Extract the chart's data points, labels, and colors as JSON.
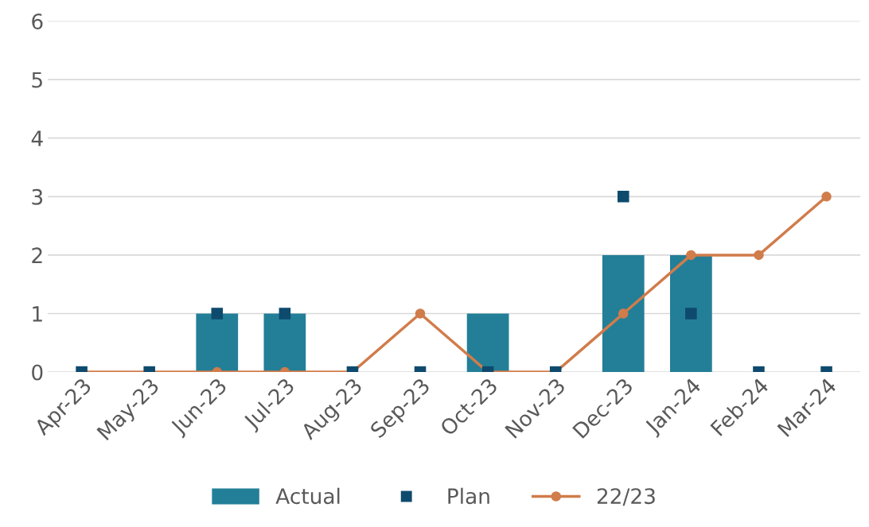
{
  "chart_data": {
    "type": "bar",
    "categories": [
      "Apr-23",
      "May-23",
      "Jun-23",
      "Jul-23",
      "Aug-23",
      "Sep-23",
      "Oct-23",
      "Nov-23",
      "Dec-23",
      "Jan-24",
      "Feb-24",
      "Mar-24"
    ],
    "series": [
      {
        "name": "Actual",
        "color": "#237f97",
        "values": [
          0,
          0,
          1,
          1,
          0,
          0,
          1,
          0,
          2,
          2,
          0,
          0
        ]
      },
      {
        "name": "Plan",
        "type": "scatter",
        "marker": "square",
        "color": "#0e4a6e",
        "values": [
          0,
          0,
          1,
          1,
          0,
          0,
          0,
          0,
          3,
          1,
          0,
          0
        ]
      },
      {
        "name": "22/23",
        "type": "line",
        "marker": "circle",
        "color": "#d17c4b",
        "values": [
          0,
          0,
          0,
          0,
          0,
          1,
          0,
          0,
          1,
          2,
          2,
          3
        ]
      }
    ],
    "ylim": [
      0,
      6
    ],
    "yticks": [
      0,
      1,
      2,
      3,
      4,
      5,
      6
    ],
    "grid": "y",
    "legend": "bottom"
  }
}
